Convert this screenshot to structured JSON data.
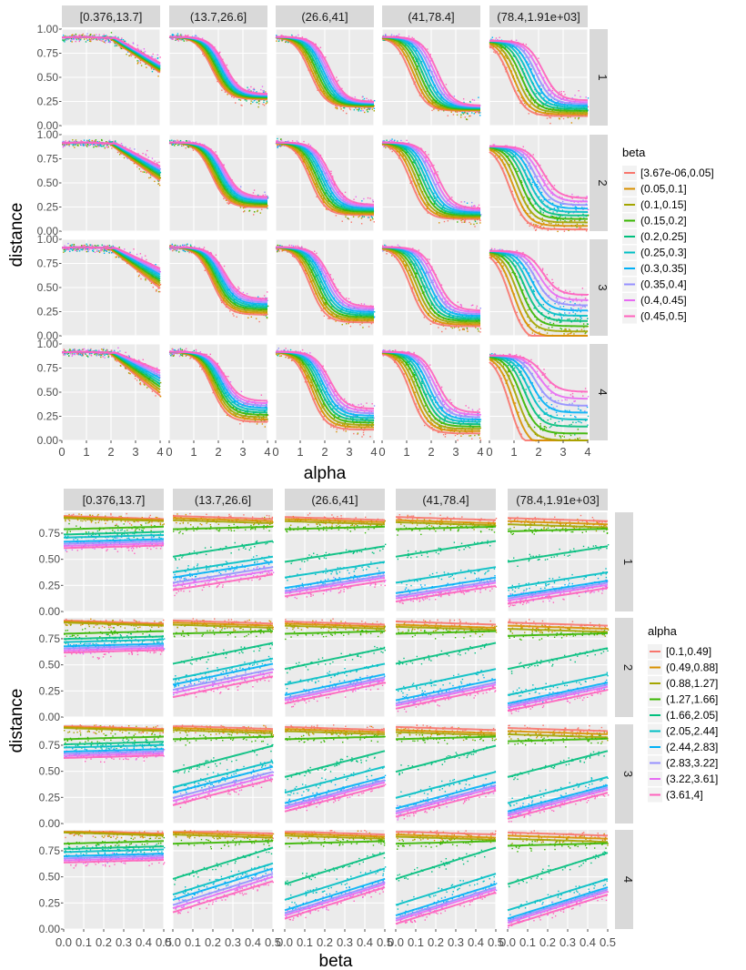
{
  "chart_data": [
    {
      "type": "scatter",
      "xlabel": "alpha",
      "ylabel": "distance",
      "xlim": [
        0,
        4
      ],
      "ylim": [
        0,
        1
      ],
      "x_ticks": [
        "0",
        "1",
        "2",
        "3",
        "4"
      ],
      "y_ticks": [
        "0.00",
        "0.25",
        "0.50",
        "0.75",
        "1.00"
      ],
      "facet_cols": [
        "[0.376,13.7]",
        "(13.7,26.6]",
        "(26.6,41]",
        "(41,78.4]",
        "(78.4,1.91e+03]"
      ],
      "facet_rows": [
        "1",
        "2",
        "3",
        "4"
      ],
      "legend": {
        "title": "beta",
        "position": "right",
        "entries": [
          "[3.67e-06,0.05]",
          "(0.05,0.1]",
          "(0.1,0.15]",
          "(0.15,0.2]",
          "(0.2,0.25]",
          "(0.25,0.3]",
          "(0.3,0.35]",
          "(0.35,0.4]",
          "(0.4,0.45]",
          "(0.45,0.5]"
        ],
        "colors": [
          "#F8766D",
          "#D89000",
          "#A3A500",
          "#39B600",
          "#00BF7D",
          "#00BFC4",
          "#00B0F6",
          "#9590FF",
          "#E76BF3",
          "#FF62BC"
        ]
      },
      "series_summary": {
        "col_1": {
          "start": 0.92,
          "drop_start": 2.0,
          "end": 0.6
        },
        "col_2": {
          "start": 0.92,
          "midpoint": 2.0,
          "end": 0.3
        },
        "col_3": {
          "start": 0.92,
          "midpoint": 1.8,
          "end": 0.22
        },
        "col_4": {
          "start": 0.92,
          "midpoint": 1.7,
          "end": 0.18
        },
        "col_5": {
          "start": 0.88,
          "midpoint": 1.5,
          "end": 0.18
        }
      },
      "grid": true
    },
    {
      "type": "scatter",
      "xlabel": "beta",
      "ylabel": "distance",
      "xlim": [
        0,
        0.5
      ],
      "ylim": [
        0,
        0.95
      ],
      "x_ticks": [
        "0.0",
        "0.1",
        "0.2",
        "0.3",
        "0.4",
        "0.5"
      ],
      "y_ticks": [
        "0.00",
        "0.25",
        "0.50",
        "0.75"
      ],
      "facet_cols": [
        "[0.376,13.7]",
        "(13.7,26.6]",
        "(26.6,41]",
        "(41,78.4]",
        "(78.4,1.91e+03]"
      ],
      "facet_rows": [
        "1",
        "2",
        "3",
        "4"
      ],
      "legend": {
        "title": "alpha",
        "position": "right",
        "entries": [
          "[0.1,0.49]",
          "(0.49,0.88]",
          "(0.88,1.27]",
          "(1.27,1.66]",
          "(1.66,2.05]",
          "(2.05,2.44]",
          "(2.44,2.83]",
          "(2.83,3.22]",
          "(3.22,3.61]",
          "(3.61,4]"
        ],
        "colors": [
          "#F8766D",
          "#D89000",
          "#A3A500",
          "#39B600",
          "#00BF7D",
          "#00BFC4",
          "#00B0F6",
          "#9590FF",
          "#E76BF3",
          "#FF62BC"
        ]
      },
      "series_levels": {
        "col_1": [
          0.9,
          0.89,
          0.88,
          0.8,
          0.75,
          0.72,
          0.68,
          0.66,
          0.64,
          0.62
        ],
        "col_2": [
          0.9,
          0.88,
          0.86,
          0.8,
          0.6,
          0.45,
          0.4,
          0.35,
          0.32,
          0.28
        ],
        "col_3": [
          0.89,
          0.87,
          0.85,
          0.8,
          0.55,
          0.4,
          0.3,
          0.27,
          0.25,
          0.22
        ],
        "col_4": [
          0.89,
          0.86,
          0.84,
          0.8,
          0.6,
          0.35,
          0.25,
          0.22,
          0.2,
          0.17
        ],
        "col_5": [
          0.88,
          0.85,
          0.82,
          0.78,
          0.55,
          0.3,
          0.22,
          0.2,
          0.18,
          0.15
        ]
      },
      "grid": true
    }
  ]
}
